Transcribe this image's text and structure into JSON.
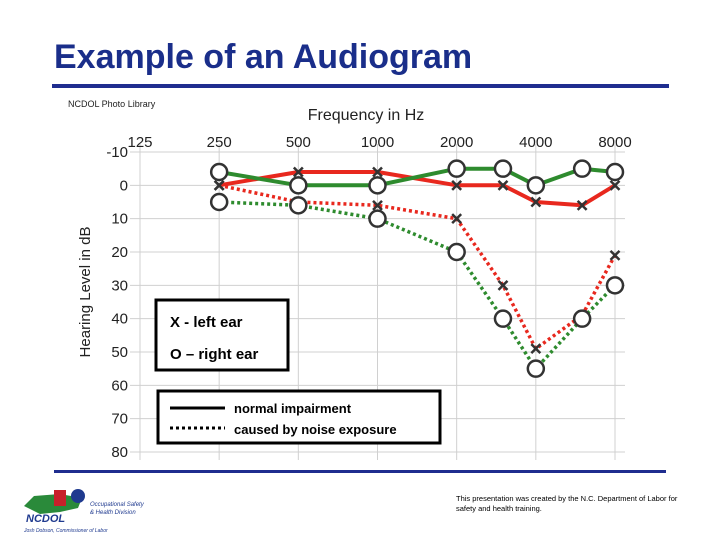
{
  "slide": {
    "title": "Example of an Audiogram",
    "footer_note": "This presentation was created by the N.C. Department of Labor for safety and health training.",
    "title_color": "#1a2e8a",
    "rule_color": "#1f2d8f"
  },
  "logo": {
    "name": "NCDOL",
    "tagline_line1": "Occupational Safety",
    "tagline_line2": "& Health Division",
    "commissioner": "Josh Dobson, Commissioner of Labor"
  },
  "chart_data": {
    "type": "line",
    "source_label": "NCDOL Photo Library",
    "title": "Frequency in Hz",
    "ylabel": "Hearing Level in dB",
    "x_categories": [
      "125",
      "250",
      "500",
      "1000",
      "2000",
      "4000",
      "8000"
    ],
    "y_ticks": [
      "-10",
      "0",
      "10",
      "20",
      "30",
      "40",
      "50",
      "60",
      "70",
      "80"
    ],
    "ylim": [
      -10,
      80
    ],
    "series": [
      {
        "name": "Left ear - normal",
        "marker": "x",
        "color": "#e8281e",
        "dashed": false,
        "x": [
          250,
          500,
          1000,
          2000,
          3000,
          4000,
          6000,
          8000
        ],
        "y": [
          0,
          -4,
          -4,
          0,
          0,
          5,
          6,
          0
        ]
      },
      {
        "name": "Right ear - normal",
        "marker": "o",
        "color": "#2e8b2e",
        "dashed": false,
        "x": [
          250,
          500,
          1000,
          2000,
          3000,
          4000,
          6000,
          8000
        ],
        "y": [
          -4,
          0,
          0,
          -5,
          -5,
          0,
          -5,
          -4
        ]
      },
      {
        "name": "Left ear - noise exposure",
        "marker": "x",
        "color": "#e8281e",
        "dashed": true,
        "x": [
          250,
          500,
          1000,
          2000,
          3000,
          4000,
          6000,
          8000
        ],
        "y": [
          0,
          5,
          6,
          10,
          30,
          49,
          39,
          21
        ]
      },
      {
        "name": "Right ear - noise exposure",
        "marker": "o",
        "color": "#2e8b2e",
        "dashed": true,
        "x": [
          250,
          500,
          1000,
          2000,
          3000,
          4000,
          6000,
          8000
        ],
        "y": [
          5,
          6,
          10,
          20,
          40,
          55,
          40,
          30
        ]
      }
    ],
    "legend_markers": {
      "x_label": "X - left ear",
      "o_label": "O – right ear"
    },
    "legend_lines": {
      "solid_label": "normal impairment",
      "dashed_label": "caused by noise exposure"
    }
  }
}
